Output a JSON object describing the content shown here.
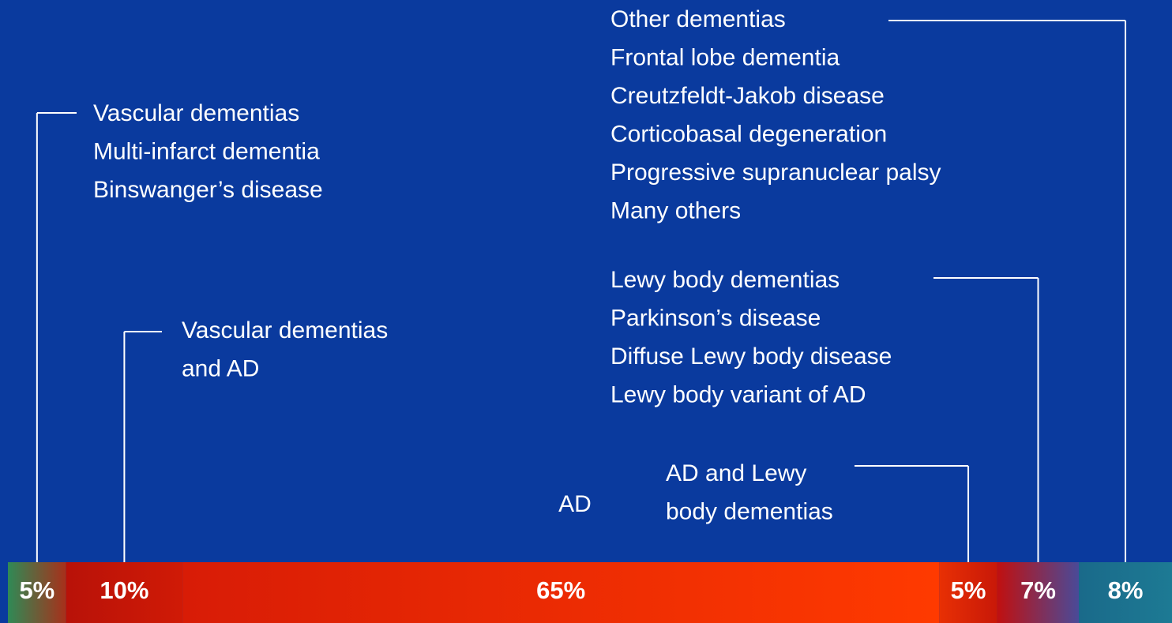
{
  "chart_data": {
    "type": "stacked_bar",
    "values": [
      5,
      10,
      65,
      5,
      7,
      8
    ],
    "value_labels": [
      "5%",
      "10%",
      "65%",
      "5%",
      "7%",
      "8%"
    ],
    "colors": [
      [
        "#2f8a56",
        "#a8301a"
      ],
      [
        "#b81208",
        "#d01a06"
      ],
      [
        "#d81c06",
        "#ff3a00"
      ],
      [
        "#e83004",
        "#c81808"
      ],
      [
        "#c01010",
        "#4a4a98"
      ],
      [
        "#1a6a8a",
        "#1d7a94"
      ]
    ],
    "annotations": [
      [
        "Vascular dementias",
        "Multi-infarct dementia",
        "Binswanger’s disease"
      ],
      [
        "Vascular dementias",
        "and AD"
      ],
      [
        "AD"
      ],
      [
        "AD and Lewy",
        "body dementias"
      ],
      [
        "Lewy body dementias",
        "Parkinson’s disease",
        "Diffuse Lewy body disease",
        "Lewy body variant of AD"
      ],
      [
        "Other dementias",
        "Frontal lobe dementia",
        "Creutzfeldt-Jakob disease",
        "Corticobasal degeneration",
        "Progressive supranuclear palsy",
        "Many others"
      ]
    ]
  }
}
